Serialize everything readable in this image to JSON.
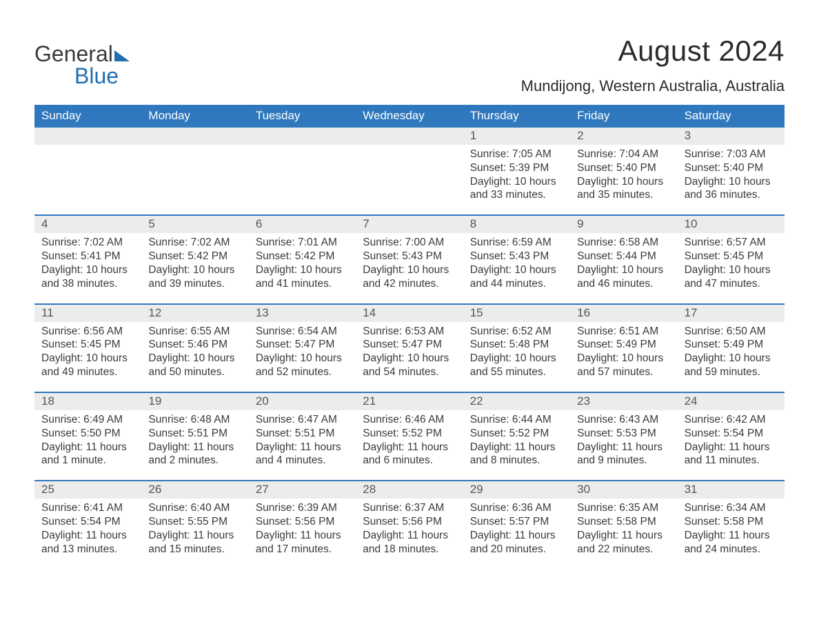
{
  "brand": {
    "word1": "General",
    "word2": "Blue"
  },
  "title": "August 2024",
  "location": "Mundijong, Western Australia, Australia",
  "colors": {
    "header_bg": "#2f78bd",
    "header_text": "#ffffff",
    "daynum_bg": "#ececec",
    "text": "#3a3a3a",
    "accent": "#1f6fb2"
  },
  "weekdays": [
    "Sunday",
    "Monday",
    "Tuesday",
    "Wednesday",
    "Thursday",
    "Friday",
    "Saturday"
  ],
  "weeks": [
    [
      {
        "n": "",
        "sunrise": "",
        "sunset": "",
        "daylight": ""
      },
      {
        "n": "",
        "sunrise": "",
        "sunset": "",
        "daylight": ""
      },
      {
        "n": "",
        "sunrise": "",
        "sunset": "",
        "daylight": ""
      },
      {
        "n": "",
        "sunrise": "",
        "sunset": "",
        "daylight": ""
      },
      {
        "n": "1",
        "sunrise": "Sunrise: 7:05 AM",
        "sunset": "Sunset: 5:39 PM",
        "daylight": "Daylight: 10 hours and 33 minutes."
      },
      {
        "n": "2",
        "sunrise": "Sunrise: 7:04 AM",
        "sunset": "Sunset: 5:40 PM",
        "daylight": "Daylight: 10 hours and 35 minutes."
      },
      {
        "n": "3",
        "sunrise": "Sunrise: 7:03 AM",
        "sunset": "Sunset: 5:40 PM",
        "daylight": "Daylight: 10 hours and 36 minutes."
      }
    ],
    [
      {
        "n": "4",
        "sunrise": "Sunrise: 7:02 AM",
        "sunset": "Sunset: 5:41 PM",
        "daylight": "Daylight: 10 hours and 38 minutes."
      },
      {
        "n": "5",
        "sunrise": "Sunrise: 7:02 AM",
        "sunset": "Sunset: 5:42 PM",
        "daylight": "Daylight: 10 hours and 39 minutes."
      },
      {
        "n": "6",
        "sunrise": "Sunrise: 7:01 AM",
        "sunset": "Sunset: 5:42 PM",
        "daylight": "Daylight: 10 hours and 41 minutes."
      },
      {
        "n": "7",
        "sunrise": "Sunrise: 7:00 AM",
        "sunset": "Sunset: 5:43 PM",
        "daylight": "Daylight: 10 hours and 42 minutes."
      },
      {
        "n": "8",
        "sunrise": "Sunrise: 6:59 AM",
        "sunset": "Sunset: 5:43 PM",
        "daylight": "Daylight: 10 hours and 44 minutes."
      },
      {
        "n": "9",
        "sunrise": "Sunrise: 6:58 AM",
        "sunset": "Sunset: 5:44 PM",
        "daylight": "Daylight: 10 hours and 46 minutes."
      },
      {
        "n": "10",
        "sunrise": "Sunrise: 6:57 AM",
        "sunset": "Sunset: 5:45 PM",
        "daylight": "Daylight: 10 hours and 47 minutes."
      }
    ],
    [
      {
        "n": "11",
        "sunrise": "Sunrise: 6:56 AM",
        "sunset": "Sunset: 5:45 PM",
        "daylight": "Daylight: 10 hours and 49 minutes."
      },
      {
        "n": "12",
        "sunrise": "Sunrise: 6:55 AM",
        "sunset": "Sunset: 5:46 PM",
        "daylight": "Daylight: 10 hours and 50 minutes."
      },
      {
        "n": "13",
        "sunrise": "Sunrise: 6:54 AM",
        "sunset": "Sunset: 5:47 PM",
        "daylight": "Daylight: 10 hours and 52 minutes."
      },
      {
        "n": "14",
        "sunrise": "Sunrise: 6:53 AM",
        "sunset": "Sunset: 5:47 PM",
        "daylight": "Daylight: 10 hours and 54 minutes."
      },
      {
        "n": "15",
        "sunrise": "Sunrise: 6:52 AM",
        "sunset": "Sunset: 5:48 PM",
        "daylight": "Daylight: 10 hours and 55 minutes."
      },
      {
        "n": "16",
        "sunrise": "Sunrise: 6:51 AM",
        "sunset": "Sunset: 5:49 PM",
        "daylight": "Daylight: 10 hours and 57 minutes."
      },
      {
        "n": "17",
        "sunrise": "Sunrise: 6:50 AM",
        "sunset": "Sunset: 5:49 PM",
        "daylight": "Daylight: 10 hours and 59 minutes."
      }
    ],
    [
      {
        "n": "18",
        "sunrise": "Sunrise: 6:49 AM",
        "sunset": "Sunset: 5:50 PM",
        "daylight": "Daylight: 11 hours and 1 minute."
      },
      {
        "n": "19",
        "sunrise": "Sunrise: 6:48 AM",
        "sunset": "Sunset: 5:51 PM",
        "daylight": "Daylight: 11 hours and 2 minutes."
      },
      {
        "n": "20",
        "sunrise": "Sunrise: 6:47 AM",
        "sunset": "Sunset: 5:51 PM",
        "daylight": "Daylight: 11 hours and 4 minutes."
      },
      {
        "n": "21",
        "sunrise": "Sunrise: 6:46 AM",
        "sunset": "Sunset: 5:52 PM",
        "daylight": "Daylight: 11 hours and 6 minutes."
      },
      {
        "n": "22",
        "sunrise": "Sunrise: 6:44 AM",
        "sunset": "Sunset: 5:52 PM",
        "daylight": "Daylight: 11 hours and 8 minutes."
      },
      {
        "n": "23",
        "sunrise": "Sunrise: 6:43 AM",
        "sunset": "Sunset: 5:53 PM",
        "daylight": "Daylight: 11 hours and 9 minutes."
      },
      {
        "n": "24",
        "sunrise": "Sunrise: 6:42 AM",
        "sunset": "Sunset: 5:54 PM",
        "daylight": "Daylight: 11 hours and 11 minutes."
      }
    ],
    [
      {
        "n": "25",
        "sunrise": "Sunrise: 6:41 AM",
        "sunset": "Sunset: 5:54 PM",
        "daylight": "Daylight: 11 hours and 13 minutes."
      },
      {
        "n": "26",
        "sunrise": "Sunrise: 6:40 AM",
        "sunset": "Sunset: 5:55 PM",
        "daylight": "Daylight: 11 hours and 15 minutes."
      },
      {
        "n": "27",
        "sunrise": "Sunrise: 6:39 AM",
        "sunset": "Sunset: 5:56 PM",
        "daylight": "Daylight: 11 hours and 17 minutes."
      },
      {
        "n": "28",
        "sunrise": "Sunrise: 6:37 AM",
        "sunset": "Sunset: 5:56 PM",
        "daylight": "Daylight: 11 hours and 18 minutes."
      },
      {
        "n": "29",
        "sunrise": "Sunrise: 6:36 AM",
        "sunset": "Sunset: 5:57 PM",
        "daylight": "Daylight: 11 hours and 20 minutes."
      },
      {
        "n": "30",
        "sunrise": "Sunrise: 6:35 AM",
        "sunset": "Sunset: 5:58 PM",
        "daylight": "Daylight: 11 hours and 22 minutes."
      },
      {
        "n": "31",
        "sunrise": "Sunrise: 6:34 AM",
        "sunset": "Sunset: 5:58 PM",
        "daylight": "Daylight: 11 hours and 24 minutes."
      }
    ]
  ]
}
